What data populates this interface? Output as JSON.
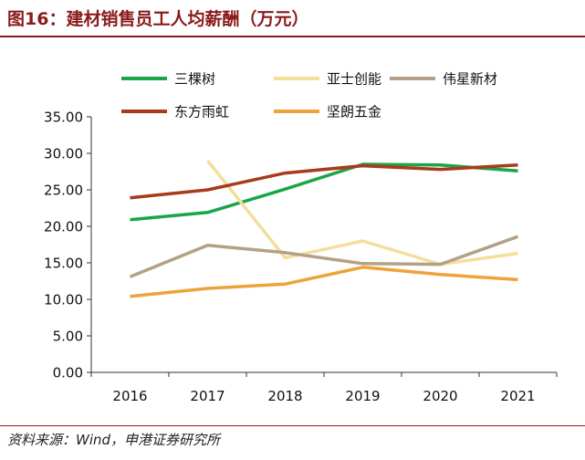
{
  "figure": {
    "title": "图16：建材销售员工人均薪酬（万元）",
    "source": "资料来源：Wind，申港证券研究所"
  },
  "chart_data": {
    "type": "line",
    "title": "建材销售员工人均薪酬（万元）",
    "xlabel": "",
    "ylabel": "",
    "x": [
      "2016",
      "2017",
      "2018",
      "2019",
      "2020",
      "2021"
    ],
    "ylim": [
      0,
      35
    ],
    "yticks": [
      "0.00",
      "5.00",
      "10.00",
      "15.00",
      "20.00",
      "25.00",
      "30.00",
      "35.00"
    ],
    "grid": false,
    "legend_position": "top",
    "series": [
      {
        "name": "三棵树",
        "color": "#1aa548",
        "values": [
          20.9,
          21.9,
          25.1,
          28.5,
          28.4,
          27.6
        ]
      },
      {
        "name": "亚士创能",
        "color": "#f3de9a",
        "values": [
          null,
          29.0,
          15.7,
          18.0,
          14.8,
          16.3
        ]
      },
      {
        "name": "伟星新材",
        "color": "#b3a185",
        "values": [
          13.1,
          17.4,
          16.4,
          14.9,
          14.8,
          18.6
        ]
      },
      {
        "name": "东方雨虹",
        "color": "#a93a1c",
        "values": [
          23.9,
          25.0,
          27.3,
          28.3,
          27.8,
          28.4
        ]
      },
      {
        "name": "坚朗五金",
        "color": "#eda33a",
        "values": [
          10.4,
          11.5,
          12.1,
          14.4,
          13.4,
          12.7
        ]
      }
    ]
  }
}
